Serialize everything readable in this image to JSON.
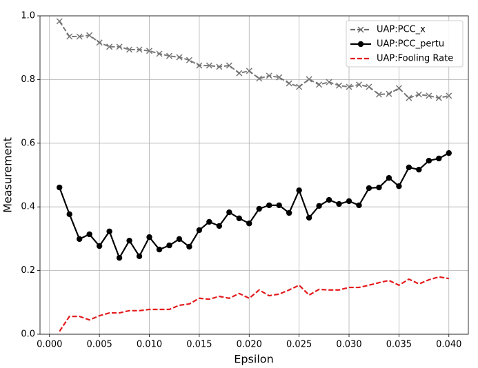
{
  "chart_data": {
    "type": "line",
    "x_label": "Epsilon",
    "y_label": "Measurement",
    "x": [
      0.001,
      0.002,
      0.003,
      0.004,
      0.005,
      0.006,
      0.007,
      0.008,
      0.009,
      0.01,
      0.011,
      0.012,
      0.013,
      0.014,
      0.015,
      0.016,
      0.017,
      0.018,
      0.019,
      0.02,
      0.021,
      0.022,
      0.023,
      0.024,
      0.025,
      0.026,
      0.027,
      0.028,
      0.029,
      0.03,
      0.031,
      0.032,
      0.033,
      0.034,
      0.035,
      0.036,
      0.037,
      0.038,
      0.039,
      0.04
    ],
    "series": [
      {
        "name": "UAP:PCC_x",
        "color": "#6b6b6b",
        "linestyle": "dashed",
        "marker": "x",
        "values": [
          0.983,
          0.935,
          0.935,
          0.939,
          0.916,
          0.903,
          0.903,
          0.894,
          0.894,
          0.89,
          0.881,
          0.874,
          0.87,
          0.861,
          0.844,
          0.844,
          0.84,
          0.844,
          0.82,
          0.827,
          0.803,
          0.812,
          0.807,
          0.788,
          0.777,
          0.801,
          0.784,
          0.792,
          0.781,
          0.777,
          0.784,
          0.777,
          0.753,
          0.755,
          0.773,
          0.742,
          0.753,
          0.749,
          0.742,
          0.749
        ]
      },
      {
        "name": "UAP:PCC_pertu",
        "color": "#000000",
        "linestyle": "solid",
        "marker": "o",
        "values": [
          0.461,
          0.377,
          0.299,
          0.314,
          0.277,
          0.323,
          0.24,
          0.294,
          0.245,
          0.305,
          0.266,
          0.279,
          0.299,
          0.275,
          0.327,
          0.353,
          0.34,
          0.383,
          0.364,
          0.348,
          0.394,
          0.405,
          0.405,
          0.381,
          0.452,
          0.366,
          0.403,
          0.422,
          0.409,
          0.418,
          0.405,
          0.459,
          0.461,
          0.491,
          0.465,
          0.524,
          0.517,
          0.545,
          0.552,
          0.569
        ]
      },
      {
        "name": "UAP:Fooling Rate",
        "color": "#e31a1c",
        "linestyle": "dashed",
        "marker": null,
        "values": [
          0.009,
          0.056,
          0.056,
          0.045,
          0.058,
          0.067,
          0.067,
          0.074,
          0.074,
          0.078,
          0.078,
          0.078,
          0.091,
          0.095,
          0.113,
          0.11,
          0.119,
          0.113,
          0.128,
          0.113,
          0.139,
          0.121,
          0.126,
          0.139,
          0.154,
          0.123,
          0.141,
          0.139,
          0.139,
          0.147,
          0.147,
          0.154,
          0.162,
          0.169,
          0.154,
          0.173,
          0.158,
          0.171,
          0.18,
          0.175
        ]
      }
    ],
    "xlim": [
      -0.00095,
      0.04195
    ],
    "xticks": [
      {
        "value": 0,
        "label": "0.000"
      },
      {
        "value": 0.005,
        "label": "0.005"
      },
      {
        "value": 0.01,
        "label": "0.010"
      },
      {
        "value": 0.015,
        "label": "0.015"
      },
      {
        "value": 0.02,
        "label": "0.020"
      },
      {
        "value": 0.025,
        "label": "0.025"
      },
      {
        "value": 0.03,
        "label": "0.030"
      },
      {
        "value": 0.035,
        "label": "0.035"
      },
      {
        "value": 0.04,
        "label": "0.040"
      }
    ],
    "ylim": [
      0,
      1
    ],
    "yticks": [
      {
        "value": 0,
        "label": "0.0"
      },
      {
        "value": 0.2,
        "label": "0.2"
      },
      {
        "value": 0.4,
        "label": "0.4"
      },
      {
        "value": 0.6,
        "label": "0.6"
      },
      {
        "value": 0.8,
        "label": "0.8"
      },
      {
        "value": 1,
        "label": "1.0"
      }
    ],
    "grid": true,
    "legend_position": "upper-right"
  }
}
